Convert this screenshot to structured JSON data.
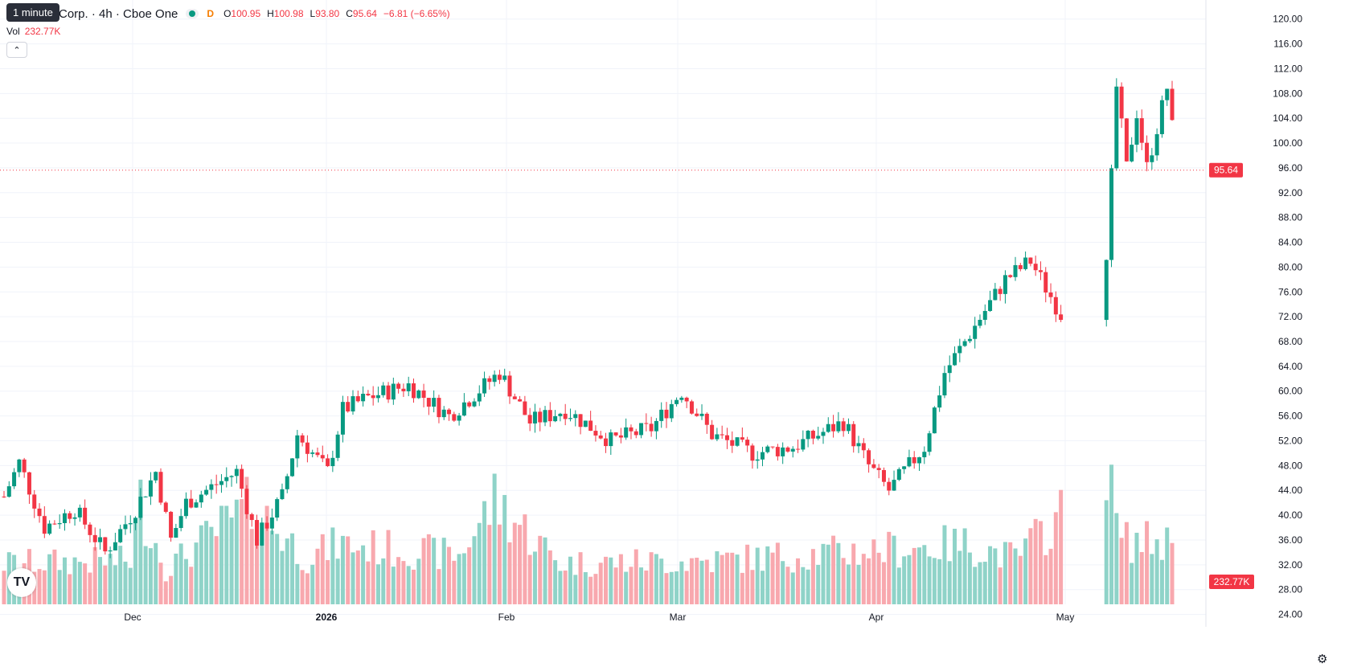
{
  "header": {
    "tooltip": "1 minute",
    "title": "Corp. · 4h · Cboe One",
    "interval_badge": "D",
    "ohlc": {
      "o_label": "O",
      "o": "100.95",
      "h_label": "H",
      "h": "100.98",
      "l_label": "L",
      "l": "93.80",
      "c_label": "C",
      "c": "95.64",
      "change": "−6.81 (−6.65%)"
    }
  },
  "volume_legend": {
    "label": "Vol",
    "value": "232.77K"
  },
  "icons": {
    "collapse": "chevron-up-icon",
    "logo": "tradingview-logo-icon",
    "settings": "gear-icon"
  },
  "colors": {
    "up": "#089981",
    "down": "#f23645",
    "volume_up": "#8fd3c8",
    "volume_down": "#f8a8ae",
    "grid": "#f0f3fa"
  },
  "chart_data": {
    "type": "candlestick",
    "y_ticks": [
      "24.00",
      "28.00",
      "32.00",
      "36.00",
      "40.00",
      "44.00",
      "48.00",
      "52.00",
      "56.00",
      "60.00",
      "64.00",
      "68.00",
      "72.00",
      "76.00",
      "80.00",
      "84.00",
      "88.00",
      "92.00",
      "96.00",
      "100.00",
      "104.00",
      "108.00",
      "112.00",
      "116.00",
      "120.00"
    ],
    "ylim": [
      22,
      121
    ],
    "x_labels": [
      "Dec",
      "2026",
      "Feb",
      "Mar",
      "Apr",
      "May"
    ],
    "last_price": 95.64,
    "last_price_label": "95.64",
    "last_volume_label": "232.77K",
    "candle_count": 232,
    "pivots": [
      [
        0,
        43
      ],
      [
        3,
        48.5
      ],
      [
        8,
        38
      ],
      [
        14,
        41
      ],
      [
        20,
        34
      ],
      [
        26,
        41
      ],
      [
        30,
        47
      ],
      [
        33,
        36
      ],
      [
        36,
        42
      ],
      [
        46,
        47
      ],
      [
        50,
        36
      ],
      [
        55,
        43
      ],
      [
        58,
        53
      ],
      [
        64,
        47
      ],
      [
        67,
        57
      ],
      [
        72,
        59
      ],
      [
        80,
        61
      ],
      [
        88,
        56
      ],
      [
        98,
        63
      ],
      [
        104,
        55
      ],
      [
        111,
        57
      ],
      [
        120,
        52
      ],
      [
        128,
        54
      ],
      [
        134,
        60
      ],
      [
        140,
        53
      ],
      [
        148,
        50
      ],
      [
        156,
        51
      ],
      [
        166,
        55
      ],
      [
        171,
        48
      ],
      [
        175,
        44
      ],
      [
        182,
        51
      ],
      [
        186,
        63
      ],
      [
        198,
        78
      ],
      [
        203,
        81
      ],
      [
        210,
        71
      ],
      [
        216,
        80
      ],
      [
        218,
        80
      ],
      [
        220,
        109
      ],
      [
        222,
        96
      ],
      [
        224,
        105
      ],
      [
        226,
        96
      ],
      [
        230,
        109
      ],
      [
        232,
        96
      ]
    ],
    "volume_pivots": [
      [
        0,
        150
      ],
      [
        25,
        160
      ],
      [
        27,
        370
      ],
      [
        32,
        130
      ],
      [
        49,
        360
      ],
      [
        60,
        170
      ],
      [
        66,
        220
      ],
      [
        90,
        180
      ],
      [
        97,
        380
      ],
      [
        110,
        150
      ],
      [
        140,
        160
      ],
      [
        190,
        220
      ],
      [
        200,
        170
      ],
      [
        218,
        480
      ],
      [
        221,
        230
      ],
      [
        232,
        230
      ]
    ]
  }
}
